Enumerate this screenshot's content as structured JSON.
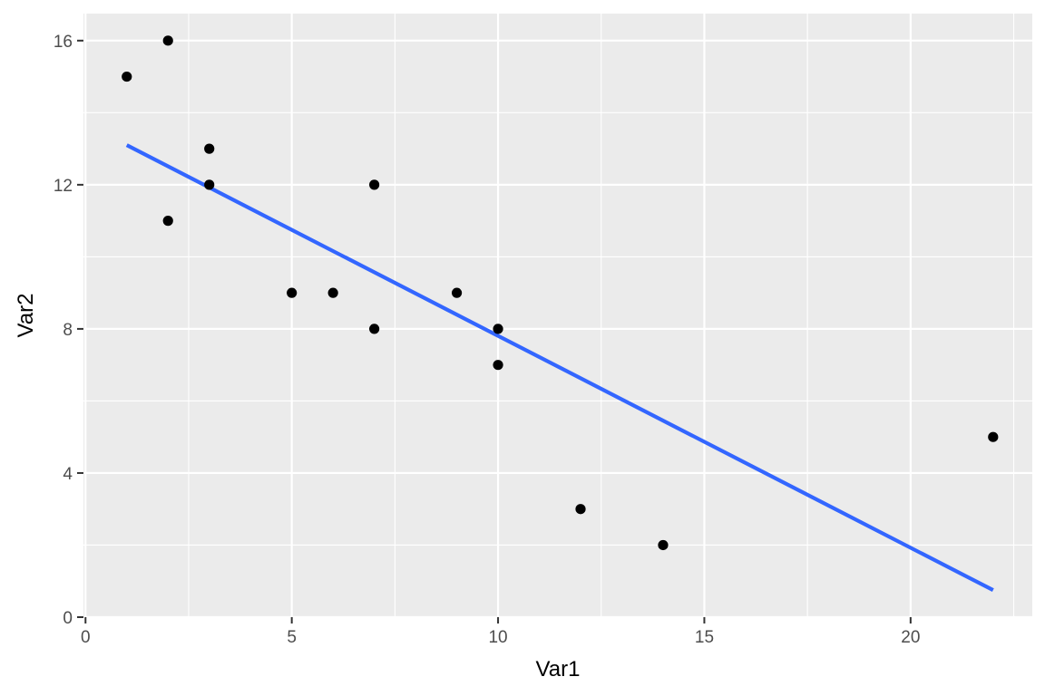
{
  "chart_data": {
    "type": "scatter",
    "title": "",
    "xlabel": "Var1",
    "ylabel": "Var2",
    "xlim": [
      -0.05,
      22.95
    ],
    "ylim": [
      0,
      16.75
    ],
    "x_ticks": [
      0,
      5,
      10,
      15,
      20
    ],
    "y_ticks": [
      0,
      4,
      8,
      12,
      16
    ],
    "x_tick_labels": [
      "0",
      "5",
      "10",
      "15",
      "20"
    ],
    "y_tick_labels": [
      "0",
      "4",
      "8",
      "12",
      "16"
    ],
    "x_minor_ticks": [
      2.5,
      7.5,
      12.5,
      17.5,
      22.5
    ],
    "y_minor_ticks": [
      2,
      6,
      10,
      14
    ],
    "grid": true,
    "legend": "none",
    "points": [
      {
        "x": 1,
        "y": 15
      },
      {
        "x": 2,
        "y": 16
      },
      {
        "x": 2,
        "y": 11
      },
      {
        "x": 3,
        "y": 13
      },
      {
        "x": 3,
        "y": 12
      },
      {
        "x": 5,
        "y": 9
      },
      {
        "x": 6,
        "y": 9
      },
      {
        "x": 7,
        "y": 12
      },
      {
        "x": 7,
        "y": 8
      },
      {
        "x": 9,
        "y": 9
      },
      {
        "x": 10,
        "y": 8
      },
      {
        "x": 10,
        "y": 7
      },
      {
        "x": 12,
        "y": 3
      },
      {
        "x": 14,
        "y": 2
      },
      {
        "x": 22,
        "y": 5
      }
    ],
    "trend_line": {
      "x": [
        1,
        22
      ],
      "y": [
        13.1,
        0.75
      ]
    },
    "colors": {
      "panel": "#ebebeb",
      "grid": "#ffffff",
      "point": "#000000",
      "trend_line": "#3366ff",
      "tick": "#333333"
    }
  }
}
